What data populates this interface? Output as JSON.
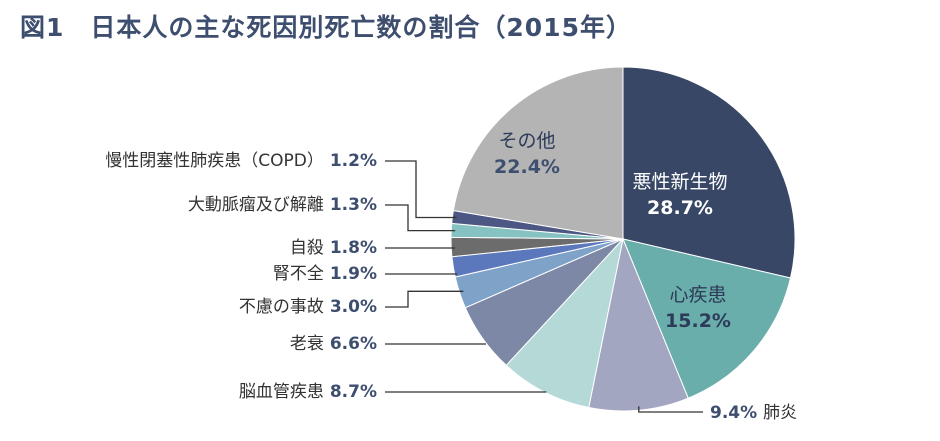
{
  "title": "図1　日本人の主な死因別死亡数の割合（2015年）",
  "chart_data": {
    "type": "pie",
    "title": "図1　日本人の主な死因別死亡数の割合（2015年）",
    "unit": "%",
    "start": "12 o'clock, clockwise",
    "slices": [
      {
        "label": "悪性新生物",
        "value": 28.7,
        "color": "#384766"
      },
      {
        "label": "心疾患",
        "value": 15.2,
        "color": "#6aaeac"
      },
      {
        "label": "肺炎",
        "value": 9.4,
        "color": "#a3a6c1"
      },
      {
        "label": "脳血管疾患",
        "value": 8.7,
        "color": "#b4d9d6"
      },
      {
        "label": "老衰",
        "value": 6.6,
        "color": "#7d88a6"
      },
      {
        "label": "不慮の事故",
        "value": 3.0,
        "color": "#7fa3c8"
      },
      {
        "label": "腎不全",
        "value": 1.9,
        "color": "#5c78bd"
      },
      {
        "label": "自殺",
        "value": 1.8,
        "color": "#6c6c6c"
      },
      {
        "label": "大動脈瘤及び解離",
        "value": 1.3,
        "color": "#86c2c1"
      },
      {
        "label": "慢性閉塞性肺疾患（COPD）",
        "value": 1.2,
        "color": "#4c5783"
      },
      {
        "label": "その他",
        "value": 22.4,
        "color": "#b4b4b4"
      }
    ]
  }
}
